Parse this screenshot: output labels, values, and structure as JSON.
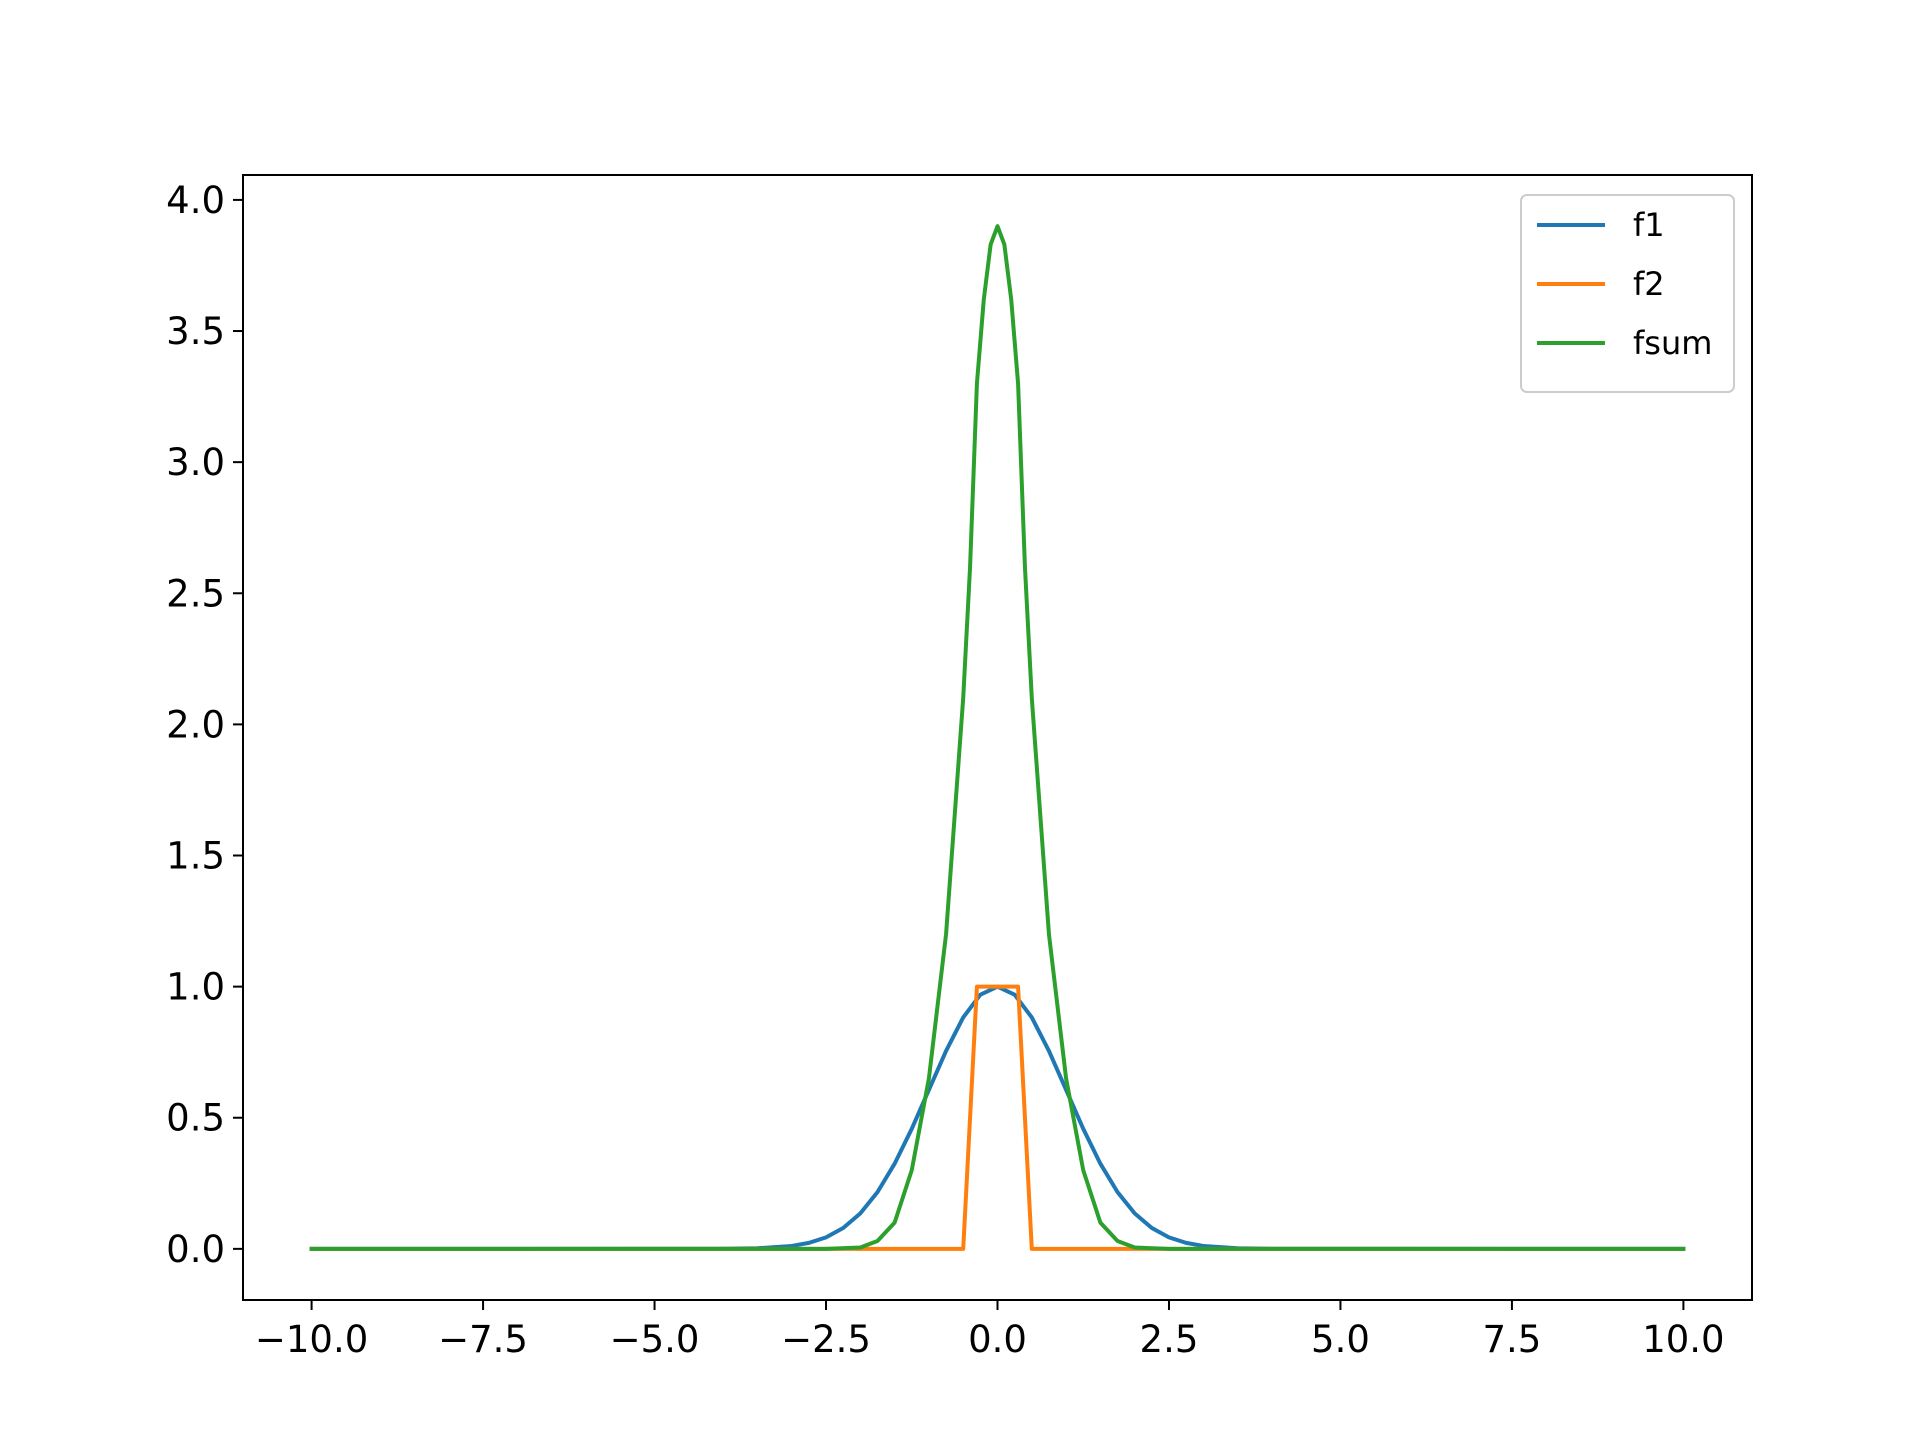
{
  "chart_data": {
    "type": "line",
    "title": "",
    "xlabel": "",
    "ylabel": "",
    "xlim": [
      -11.0,
      11.0
    ],
    "ylim": [
      -0.195,
      4.095
    ],
    "xticks": [
      -10.0,
      -7.5,
      -5.0,
      -2.5,
      0.0,
      2.5,
      5.0,
      7.5,
      10.0
    ],
    "xtick_labels": [
      "−10.0",
      "−7.5",
      "−5.0",
      "−2.5",
      "0.0",
      "2.5",
      "5.0",
      "7.5",
      "10.0"
    ],
    "yticks": [
      0.0,
      0.5,
      1.0,
      1.5,
      2.0,
      2.5,
      3.0,
      3.5,
      4.0
    ],
    "ytick_labels": [
      "0.0",
      "0.5",
      "1.0",
      "1.5",
      "2.0",
      "2.5",
      "3.0",
      "3.5",
      "4.0"
    ],
    "grid": false,
    "legend_position": "top-right",
    "x": [
      -10.0,
      -3.5,
      -3.0,
      -2.5,
      -2.0,
      -1.5,
      -1.0,
      -0.5,
      -0.25,
      0.0,
      0.25,
      0.5,
      1.0,
      1.5,
      2.0,
      2.5,
      3.0,
      3.5,
      10.0
    ],
    "series": [
      {
        "name": "f1",
        "color": "#1f77b4",
        "x": [
          -10.0,
          -4.0,
          -3.5,
          -3.0,
          -2.75,
          -2.5,
          -2.25,
          -2.0,
          -1.75,
          -1.5,
          -1.25,
          -1.0,
          -0.75,
          -0.5,
          -0.25,
          0.0,
          0.25,
          0.5,
          0.75,
          1.0,
          1.25,
          1.5,
          1.75,
          2.0,
          2.25,
          2.5,
          2.75,
          3.0,
          3.5,
          4.0,
          10.0
        ],
        "y": [
          0.0,
          0.0003,
          0.0022,
          0.0111,
          0.0228,
          0.0439,
          0.0796,
          0.1353,
          0.2163,
          0.3247,
          0.4578,
          0.6065,
          0.7548,
          0.8825,
          0.9692,
          1.0,
          0.9692,
          0.8825,
          0.7548,
          0.6065,
          0.4578,
          0.3247,
          0.2163,
          0.1353,
          0.0796,
          0.0439,
          0.0228,
          0.0111,
          0.0022,
          0.0003,
          0.0
        ]
      },
      {
        "name": "f2",
        "color": "#ff7f0e",
        "x": [
          -10.0,
          -0.5,
          -0.3,
          0.3,
          0.5,
          10.0
        ],
        "y": [
          0.0,
          0.0,
          1.0,
          1.0,
          0.0,
          0.0
        ]
      },
      {
        "name": "fsum",
        "color": "#2ca02c",
        "x": [
          -10.0,
          -2.5,
          -2.0,
          -1.75,
          -1.5,
          -1.25,
          -1.0,
          -0.75,
          -0.5,
          -0.4,
          -0.3,
          -0.2,
          -0.1,
          0.0,
          0.1,
          0.2,
          0.3,
          0.4,
          0.5,
          0.75,
          1.0,
          1.25,
          1.5,
          1.75,
          2.0,
          2.5,
          10.0
        ],
        "y": [
          0.0,
          0.0,
          0.005,
          0.03,
          0.1,
          0.3,
          0.65,
          1.2,
          2.1,
          2.6,
          3.3,
          3.62,
          3.83,
          3.9,
          3.83,
          3.62,
          3.3,
          2.6,
          2.1,
          1.2,
          0.65,
          0.3,
          0.1,
          0.03,
          0.005,
          0.0,
          0.0
        ]
      }
    ]
  }
}
